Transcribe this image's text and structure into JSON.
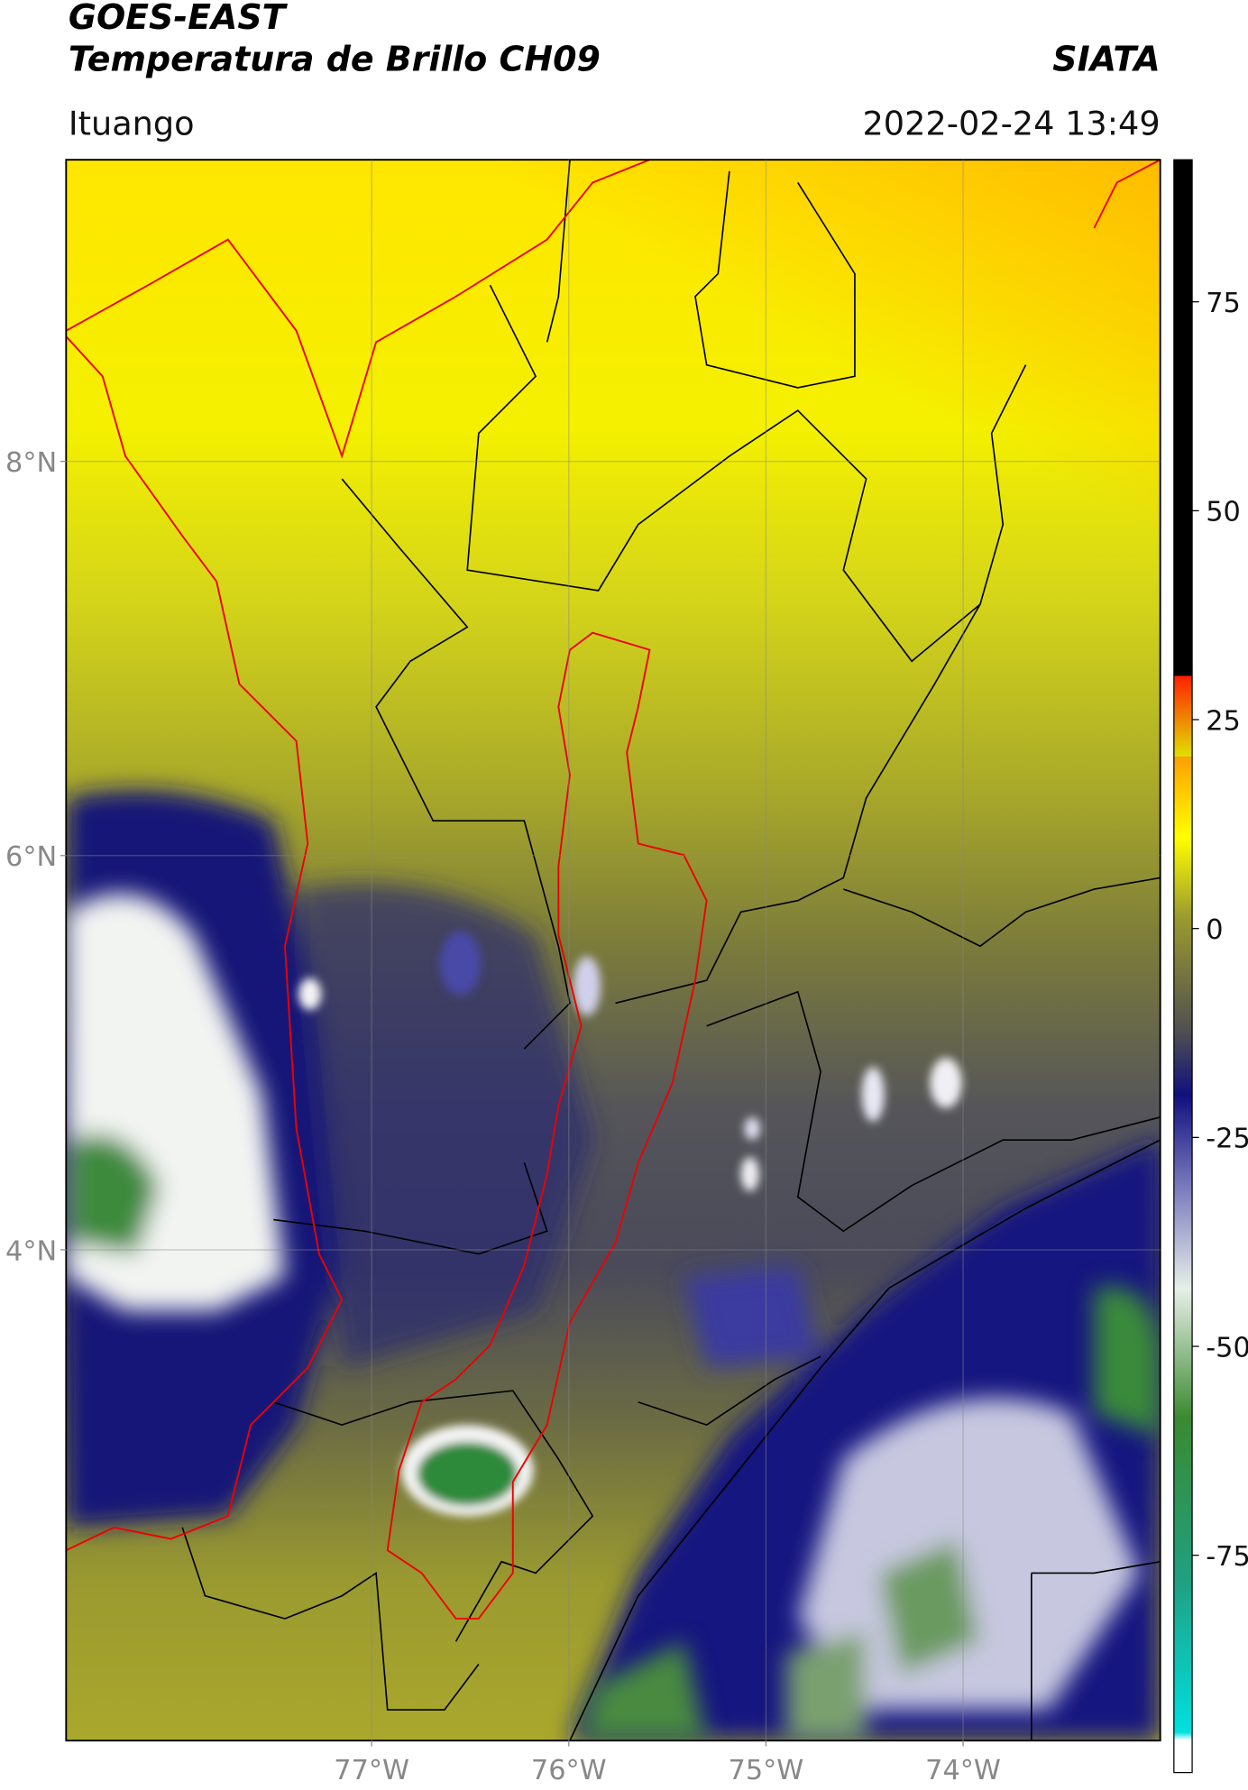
{
  "header": {
    "title": "GOES-EAST",
    "subtitle": "Temperatura de Brillo CH09",
    "brand": "SIATA",
    "location": "Ituango",
    "datetime": "2022-02-24 13:49"
  },
  "map": {
    "lonlim": [
      -78.55,
      -73.0
    ],
    "latlim": [
      1.51,
      9.53
    ],
    "lonticks": [
      {
        "value": -77,
        "label": "77°W"
      },
      {
        "value": -76,
        "label": "76°W"
      },
      {
        "value": -75,
        "label": "75°W"
      },
      {
        "value": -74,
        "label": "74°W"
      }
    ],
    "latticks": [
      {
        "value": 8,
        "label": "8°N"
      },
      {
        "value": 6,
        "label": "6°N"
      },
      {
        "value": 4,
        "label": "4°N"
      }
    ],
    "grid": true
  },
  "colorbar": {
    "clim": [
      -101,
      92
    ],
    "ticks": [
      75,
      50,
      25,
      0,
      -25,
      -50,
      -75
    ]
  }
}
